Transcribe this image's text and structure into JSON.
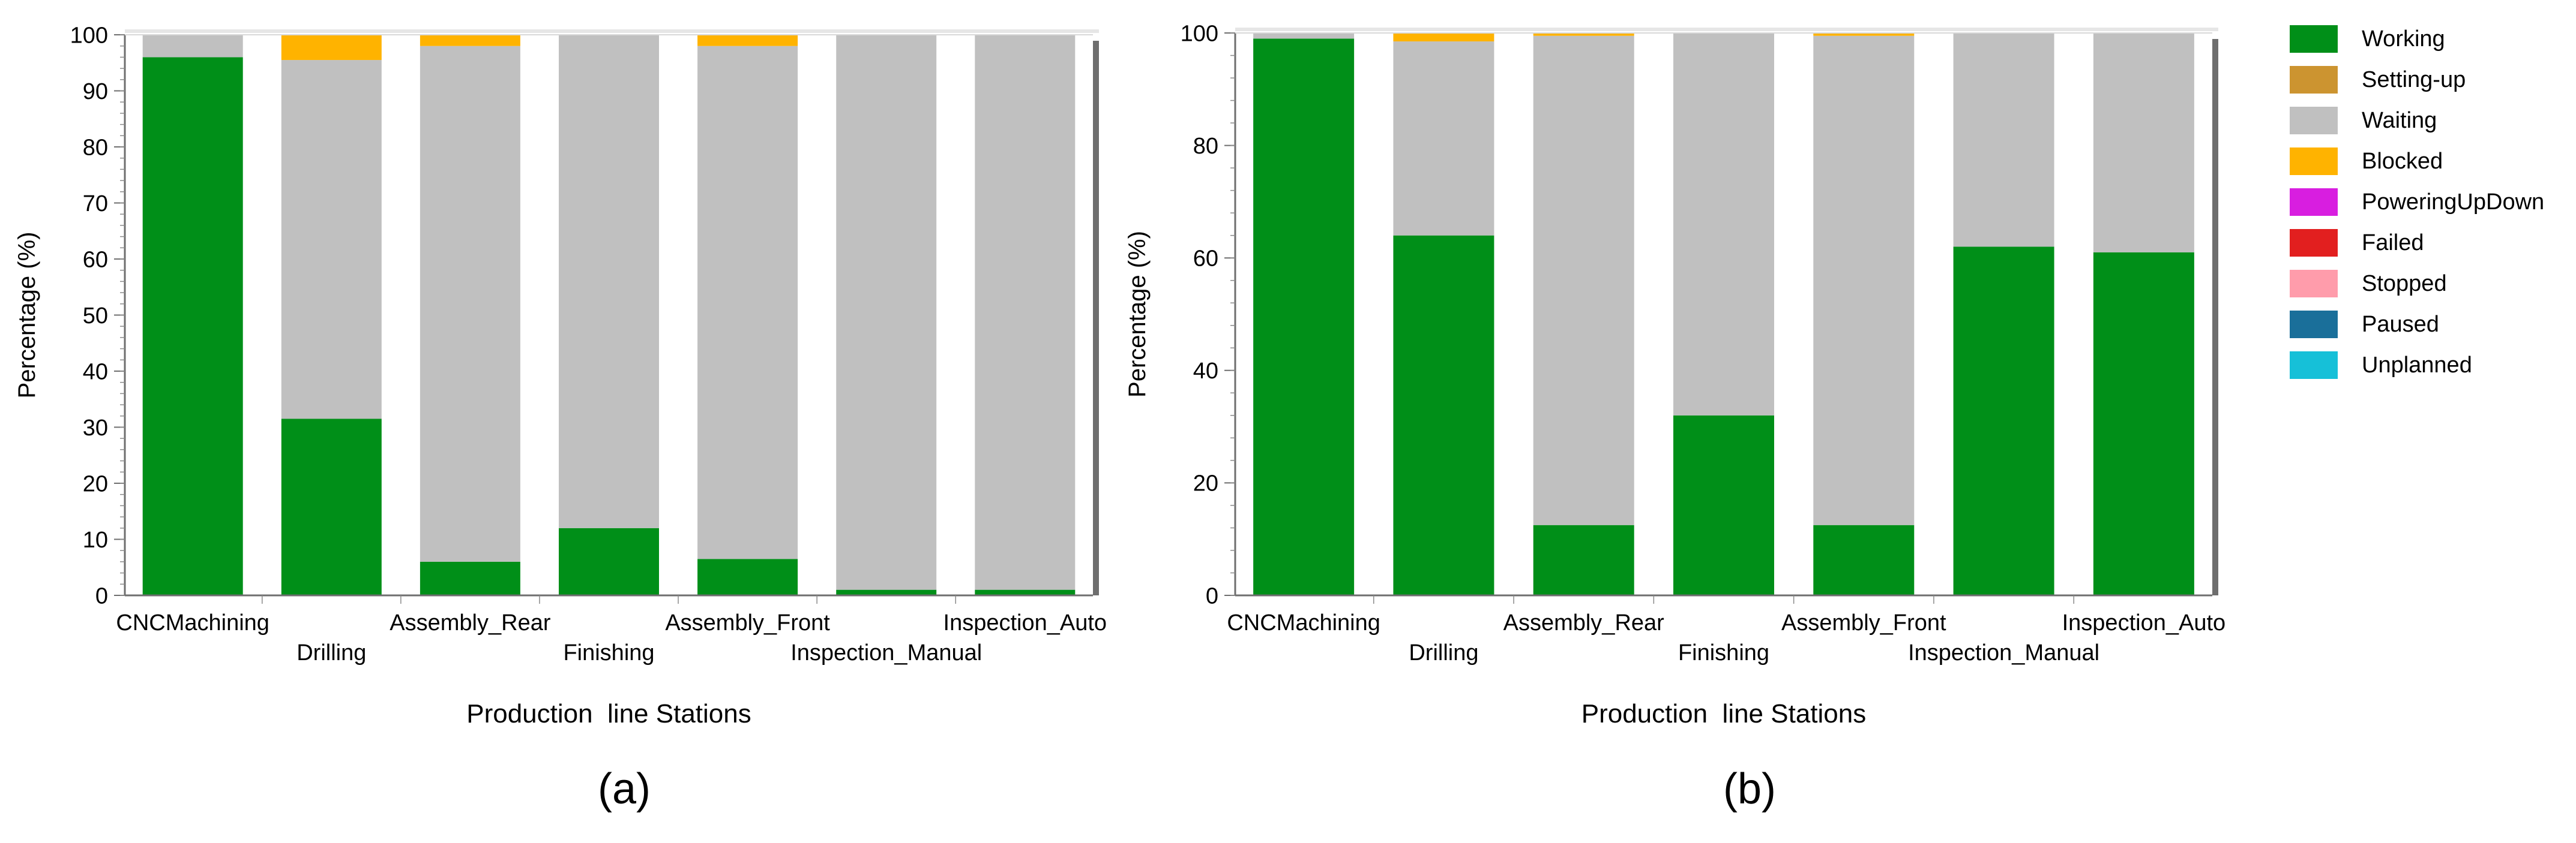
{
  "colors": {
    "Working": "#008f18",
    "Setting-up": "#cc9430",
    "Waiting": "#c0c0c0",
    "Blocked": "#ffb300",
    "PoweringUpDown": "#d81ee0",
    "Failed": "#e21f1f",
    "Stopped": "#ff9cab",
    "Paused": "#1a6f9a",
    "Unplanned": "#16c0d8"
  },
  "legend": {
    "items": [
      "Working",
      "Setting-up",
      "Waiting",
      "Blocked",
      "PoweringUpDown",
      "Failed",
      "Stopped",
      "Paused",
      "Unplanned"
    ]
  },
  "chart_data": [
    {
      "type": "bar",
      "stacked": true,
      "caption": "(a)",
      "ylabel": "Percentage (%)",
      "xlabel": "Production  line Stations",
      "ylim": [
        0,
        100
      ],
      "yticks": [
        0,
        10,
        20,
        30,
        40,
        50,
        60,
        70,
        80,
        90,
        100
      ],
      "grid": false,
      "categories": [
        "CNCMachining",
        "Drilling",
        "Assembly_Rear",
        "Finishing",
        "Assembly_Front",
        "Inspection_Manual",
        "Inspection_Auto"
      ],
      "series": [
        {
          "name": "Working",
          "values": [
            96,
            31.5,
            6,
            12,
            6.5,
            1,
            1
          ]
        },
        {
          "name": "Waiting",
          "values": [
            4,
            64,
            92,
            88,
            91.5,
            99,
            99
          ]
        },
        {
          "name": "Blocked",
          "values": [
            0,
            4.5,
            2,
            0,
            2,
            0,
            0
          ]
        }
      ]
    },
    {
      "type": "bar",
      "stacked": true,
      "caption": "(b)",
      "ylabel": "Percentage (%)",
      "xlabel": "Production  line Stations",
      "ylim": [
        0,
        100
      ],
      "yticks": [
        0,
        20,
        40,
        60,
        80,
        100
      ],
      "grid": false,
      "categories": [
        "CNCMachining",
        "Drilling",
        "Assembly_Rear",
        "Finishing",
        "Assembly_Front",
        "Inspection_Manual",
        "Inspection_Auto"
      ],
      "series": [
        {
          "name": "Working",
          "values": [
            99,
            64,
            12.5,
            32,
            12.5,
            62,
            61
          ]
        },
        {
          "name": "Waiting",
          "values": [
            1,
            34.5,
            87,
            68,
            87,
            38,
            39
          ]
        },
        {
          "name": "Blocked",
          "values": [
            0,
            1.5,
            0.5,
            0,
            0.5,
            0,
            0
          ]
        }
      ]
    }
  ]
}
